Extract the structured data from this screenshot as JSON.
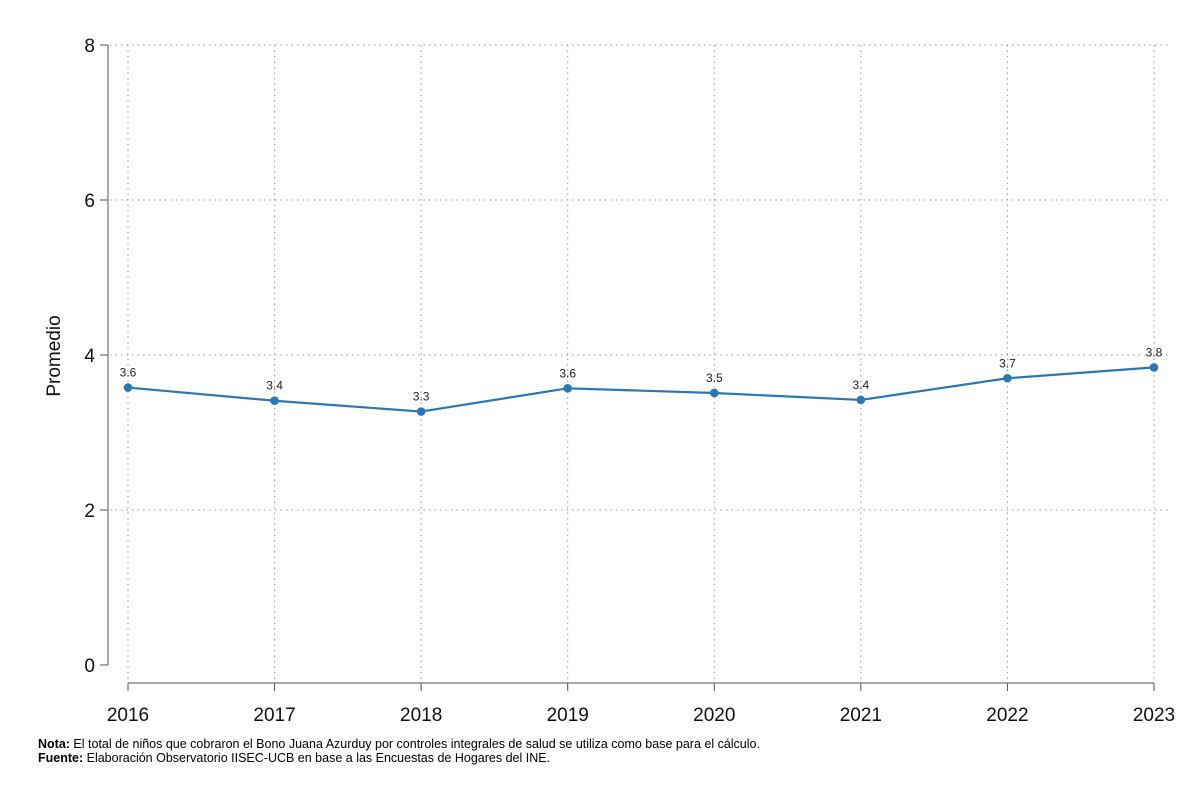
{
  "chart_data": {
    "type": "line",
    "title": "",
    "xlabel": "",
    "ylabel": "Promedio",
    "ylim": [
      0,
      8
    ],
    "yticks": [
      0,
      2,
      4,
      6,
      8
    ],
    "grid": true,
    "categories": [
      "2016",
      "2017",
      "2018",
      "2019",
      "2020",
      "2021",
      "2022",
      "2023"
    ],
    "series": [
      {
        "name": "Promedio",
        "color": "#2a77b4",
        "values": [
          3.58,
          3.41,
          3.27,
          3.57,
          3.51,
          3.42,
          3.7,
          3.84
        ],
        "labels": [
          "3.6",
          "3.4",
          "3.3",
          "3.6",
          "3.5",
          "3.4",
          "3.7",
          "3.8"
        ]
      }
    ]
  },
  "notes": {
    "nota_label": "Nota:",
    "nota_text": " El total de niños que cobraron el Bono Juana Azurduy por controles integrales de salud se utiliza como base para el cálculo.",
    "fuente_label": "Fuente:",
    "fuente_text": " Elaboración Observatorio IISEC-UCB en base a las Encuestas de Hogares del INE."
  }
}
